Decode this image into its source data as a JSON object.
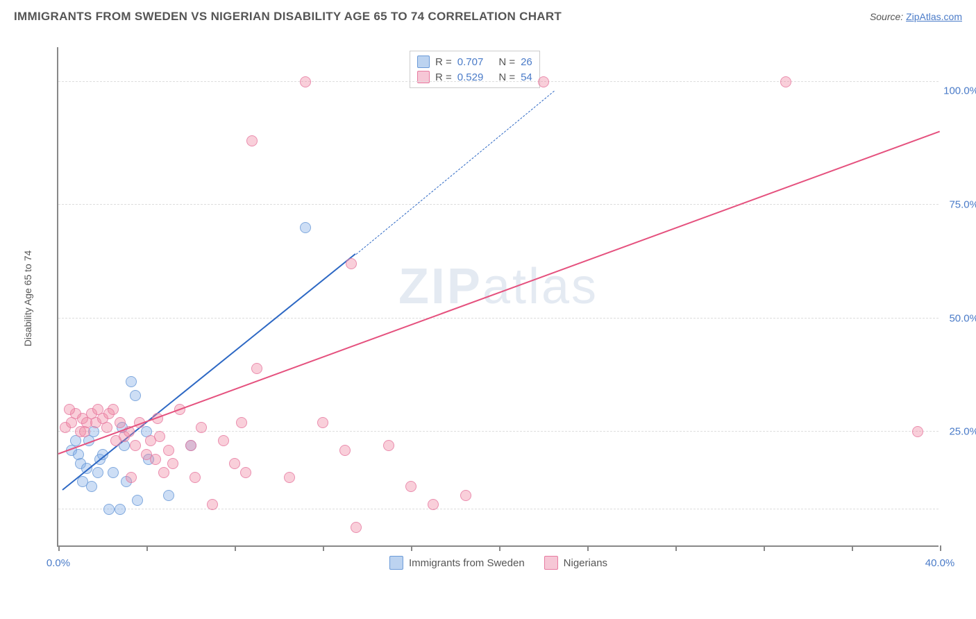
{
  "header": {
    "title": "IMMIGRANTS FROM SWEDEN VS NIGERIAN DISABILITY AGE 65 TO 74 CORRELATION CHART",
    "source_label": "Source: ",
    "source_link": "ZipAtlas.com"
  },
  "chart": {
    "type": "scatter",
    "y_axis_label": "Disability Age 65 to 74",
    "watermark": "ZIPatlas",
    "background_color": "#ffffff",
    "axis_color": "#888888",
    "grid_color": "#dddddd",
    "xlim": [
      0,
      40
    ],
    "ylim": [
      0,
      110
    ],
    "x_ticks": [
      0,
      4,
      8,
      12,
      16,
      20,
      24,
      28,
      32,
      36,
      40
    ],
    "x_tick_labels": {
      "0": "0.0%",
      "40": "40.0%"
    },
    "y_gridlines": [
      8,
      25,
      50,
      75,
      102
    ],
    "y_tick_labels": {
      "25": "25.0%",
      "50": "50.0%",
      "75": "75.0%",
      "100": "100.0%"
    },
    "series": [
      {
        "name": "Immigrants from Sweden",
        "color_fill": "rgba(125, 170, 230, 0.45)",
        "color_stroke": "#6a9ad8",
        "legend_swatch_fill": "#bcd3f0",
        "legend_swatch_stroke": "#6a9ad8",
        "trend_color": "#2d68c4",
        "R": "0.707",
        "N": "26",
        "trend": {
          "x1": 0.2,
          "y1": 12,
          "x2": 13.5,
          "y2": 64,
          "extend_x": 22.5,
          "extend_y": 100
        },
        "points": [
          [
            0.6,
            21
          ],
          [
            0.8,
            23
          ],
          [
            0.9,
            20
          ],
          [
            1.0,
            18
          ],
          [
            1.1,
            14
          ],
          [
            1.5,
            13
          ],
          [
            1.3,
            17
          ],
          [
            1.8,
            16
          ],
          [
            1.9,
            19
          ],
          [
            2.0,
            20
          ],
          [
            1.6,
            25
          ],
          [
            2.3,
            8
          ],
          [
            2.8,
            8
          ],
          [
            2.5,
            16
          ],
          [
            2.9,
            26
          ],
          [
            3.1,
            14
          ],
          [
            3.0,
            22
          ],
          [
            3.3,
            36
          ],
          [
            3.5,
            33
          ],
          [
            4.0,
            25
          ],
          [
            4.1,
            19
          ],
          [
            5.0,
            11
          ],
          [
            6.0,
            22
          ],
          [
            11.2,
            70
          ],
          [
            3.6,
            10
          ],
          [
            1.4,
            23
          ]
        ]
      },
      {
        "name": "Nigerians",
        "color_fill": "rgba(240, 130, 160, 0.45)",
        "color_stroke": "#e77aa0",
        "legend_swatch_fill": "#f6c7d6",
        "legend_swatch_stroke": "#e77aa0",
        "trend_color": "#e5517e",
        "R": "0.529",
        "N": "54",
        "trend": {
          "x1": 0,
          "y1": 20,
          "x2": 40,
          "y2": 91
        },
        "points": [
          [
            0.3,
            26
          ],
          [
            0.6,
            27
          ],
          [
            0.8,
            29
          ],
          [
            1.0,
            25
          ],
          [
            1.1,
            28
          ],
          [
            1.3,
            27
          ],
          [
            1.5,
            29
          ],
          [
            1.7,
            27
          ],
          [
            1.8,
            30
          ],
          [
            2.0,
            28
          ],
          [
            2.2,
            26
          ],
          [
            2.5,
            30
          ],
          [
            2.6,
            23
          ],
          [
            2.8,
            27
          ],
          [
            3.0,
            24
          ],
          [
            3.2,
            25
          ],
          [
            3.5,
            22
          ],
          [
            3.7,
            27
          ],
          [
            4.0,
            20
          ],
          [
            4.2,
            23
          ],
          [
            4.4,
            19
          ],
          [
            4.6,
            24
          ],
          [
            4.8,
            16
          ],
          [
            5.0,
            21
          ],
          [
            5.2,
            18
          ],
          [
            5.5,
            30
          ],
          [
            6.0,
            22
          ],
          [
            6.2,
            15
          ],
          [
            6.5,
            26
          ],
          [
            7.0,
            9
          ],
          [
            7.5,
            23
          ],
          [
            8.0,
            18
          ],
          [
            8.3,
            27
          ],
          [
            8.5,
            16
          ],
          [
            8.8,
            89
          ],
          [
            9.0,
            39
          ],
          [
            10.5,
            15
          ],
          [
            11.2,
            102
          ],
          [
            12.0,
            27
          ],
          [
            13.0,
            21
          ],
          [
            13.3,
            62
          ],
          [
            13.5,
            4
          ],
          [
            15.0,
            22
          ],
          [
            16.0,
            13
          ],
          [
            17.0,
            9
          ],
          [
            18.5,
            11
          ],
          [
            22.0,
            102
          ],
          [
            33.0,
            102
          ],
          [
            39.0,
            25
          ],
          [
            3.3,
            15
          ],
          [
            4.5,
            28
          ],
          [
            2.3,
            29
          ],
          [
            1.2,
            25
          ],
          [
            0.5,
            30
          ]
        ]
      }
    ],
    "r_legend": {
      "rows": [
        0,
        1
      ]
    },
    "bottom_legend": {
      "items": [
        0,
        1
      ]
    }
  }
}
